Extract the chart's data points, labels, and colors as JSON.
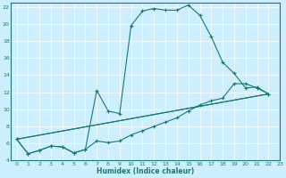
{
  "xlabel": "Humidex (Indice chaleur)",
  "bg_color": "#cceeff",
  "line_color": "#1a7a6e",
  "xlim": [
    -0.5,
    23
  ],
  "ylim": [
    4,
    22.5
  ],
  "xticks": [
    0,
    1,
    2,
    3,
    4,
    5,
    6,
    7,
    8,
    9,
    10,
    11,
    12,
    13,
    14,
    15,
    16,
    17,
    18,
    19,
    20,
    21,
    22,
    23
  ],
  "yticks": [
    4,
    6,
    8,
    10,
    12,
    14,
    16,
    18,
    20,
    22
  ],
  "line1_x": [
    0,
    1,
    2,
    3,
    4,
    5,
    6,
    7,
    8,
    9,
    10,
    11,
    12,
    13,
    14,
    15,
    16,
    17,
    18,
    19,
    20,
    21,
    22
  ],
  "line1_y": [
    6.5,
    4.8,
    5.2,
    5.7,
    5.6,
    4.9,
    5.3,
    12.2,
    9.8,
    9.5,
    19.8,
    21.5,
    21.8,
    21.6,
    21.6,
    22.2,
    21.0,
    18.5,
    15.5,
    14.2,
    12.5,
    12.6,
    11.8
  ],
  "line2_x": [
    0,
    1,
    2,
    3,
    4,
    5,
    6,
    7,
    8,
    9,
    10,
    11,
    12,
    13,
    14,
    15,
    16,
    17,
    18,
    19,
    20,
    21,
    22
  ],
  "line2_y": [
    6.5,
    4.8,
    5.2,
    5.7,
    5.6,
    4.9,
    5.3,
    6.3,
    6.1,
    6.3,
    7.0,
    7.5,
    8.0,
    8.5,
    9.0,
    9.8,
    10.5,
    11.0,
    11.3,
    13.0,
    13.0,
    12.5,
    11.8
  ],
  "line3_x": [
    0,
    22
  ],
  "line3_y": [
    6.5,
    11.8
  ],
  "line4_x": [
    0,
    22
  ],
  "line4_y": [
    6.5,
    11.8
  ]
}
